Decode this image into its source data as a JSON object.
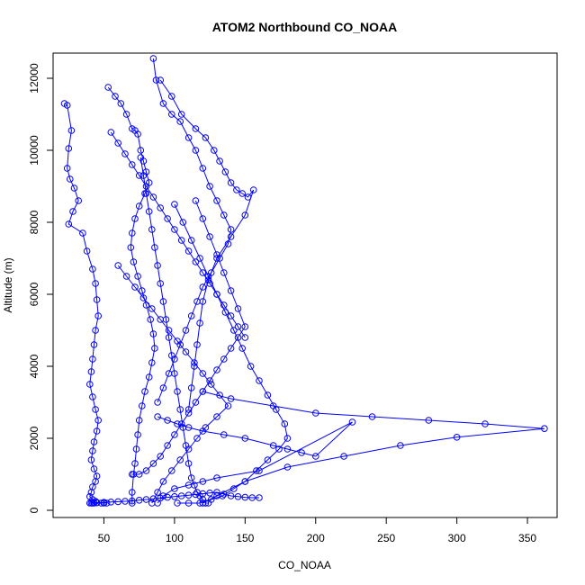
{
  "chart_data": {
    "type": "line",
    "title": "ATOM2 Northbound CO_NOAA",
    "xlabel": "CO_NOAA",
    "ylabel": "Altitude (m)",
    "xlim": [
      14,
      371
    ],
    "ylim": [
      -200,
      12700
    ],
    "x_ticks": [
      50,
      100,
      150,
      200,
      250,
      300,
      350
    ],
    "y_ticks": [
      0,
      2000,
      4000,
      6000,
      8000,
      10000,
      12000
    ],
    "colors": {
      "series": "#0000ff",
      "axis": "#000000",
      "background": "#ffffff"
    },
    "markers": "open-circle",
    "grid": false,
    "series": [
      {
        "x": [
          22,
          24,
          27,
          25,
          24,
          26,
          29,
          32,
          28,
          25,
          35,
          38,
          42,
          44,
          45,
          46,
          44,
          43,
          42,
          41,
          40,
          42,
          44,
          46,
          45,
          43,
          42,
          41,
          43,
          45,
          44,
          42,
          41,
          40,
          42,
          44,
          43,
          42,
          41,
          43,
          45,
          48,
          50,
          52
        ],
        "y": [
          11300,
          11250,
          10550,
          10050,
          9500,
          9200,
          8950,
          8600,
          8300,
          7950,
          7700,
          7200,
          6700,
          6300,
          5850,
          5400,
          5000,
          4600,
          4200,
          3850,
          3500,
          3150,
          2800,
          2500,
          2200,
          1900,
          1650,
          1400,
          1150,
          950,
          800,
          650,
          500,
          380,
          300,
          250,
          210,
          200,
          200,
          200,
          210,
          200,
          200,
          200
        ]
      },
      {
        "x": [
          53,
          58,
          62,
          66,
          70,
          72,
          74,
          76,
          78,
          80,
          82,
          79,
          75,
          72,
          70,
          69,
          71,
          74,
          77,
          80,
          83,
          85,
          86,
          84,
          82,
          79,
          77,
          75,
          74,
          73,
          72,
          71,
          70,
          70
        ],
        "y": [
          11750,
          11500,
          11300,
          11000,
          10600,
          10550,
          10450,
          10000,
          9700,
          9400,
          9100,
          8800,
          8450,
          8100,
          7700,
          7300,
          6900,
          6500,
          6100,
          5700,
          5300,
          4900,
          4500,
          4100,
          3700,
          3300,
          2900,
          2500,
          2100,
          1700,
          1300,
          1000,
          500,
          200
        ]
      },
      {
        "x": [
          85,
          87,
          92,
          98,
          104,
          110,
          115,
          120,
          125,
          130,
          135,
          140,
          138,
          132,
          126,
          120,
          116,
          112,
          108,
          104,
          100,
          96,
          92,
          88
        ],
        "y": [
          12550,
          11950,
          11300,
          11000,
          10800,
          10350,
          10000,
          9500,
          9000,
          8600,
          8200,
          7800,
          7400,
          7000,
          6600,
          6200,
          5800,
          5400,
          5000,
          4600,
          4200,
          3800,
          3400,
          3000
        ]
      },
      {
        "x": [
          88,
          95,
          102,
          110,
          120,
          135,
          150,
          170,
          180,
          190,
          200,
          226,
          160,
          130,
          120,
          110,
          100,
          92,
          88
        ],
        "y": [
          2600,
          2500,
          2400,
          2300,
          2200,
          2100,
          2000,
          1800,
          1700,
          1600,
          1500,
          2450,
          1100,
          900,
          800,
          700,
          600,
          400,
          200
        ]
      },
      {
        "x": [
          120,
          140,
          170,
          200,
          240,
          280,
          320,
          362,
          300,
          260,
          220,
          180,
          150,
          130,
          120
        ],
        "y": [
          3300,
          3100,
          2900,
          2700,
          2600,
          2500,
          2400,
          2270,
          2030,
          1800,
          1500,
          1200,
          800,
          400,
          200
        ]
      },
      {
        "x": [
          90,
          98,
          105,
          115,
          122,
          128,
          132,
          136,
          140,
          144,
          148,
          152,
          156,
          150,
          140,
          130,
          124,
          120,
          118,
          116,
          114,
          112,
          110
        ],
        "y": [
          11950,
          11500,
          11000,
          10600,
          10350,
          10000,
          9700,
          9400,
          9100,
          8900,
          8800,
          8700,
          8900,
          8200,
          7600,
          7000,
          6400,
          5800,
          5200,
          4600,
          4000,
          3400,
          2800
        ]
      },
      {
        "x": [
          60,
          66,
          72,
          78,
          84,
          90,
          96,
          102,
          108,
          114,
          120,
          126,
          132,
          138,
          130,
          122,
          116,
          110,
          104,
          98,
          92,
          88,
          84
        ],
        "y": [
          6800,
          6500,
          6200,
          5900,
          5600,
          5300,
          5000,
          4700,
          4400,
          4100,
          3800,
          3500,
          3200,
          2900,
          2600,
          2300,
          2000,
          1700,
          1400,
          1100,
          800,
          500,
          200
        ]
      },
      {
        "x": [
          100,
          106,
          112,
          118,
          124,
          130,
          136,
          142,
          148,
          154,
          160,
          166,
          172,
          178,
          180,
          174,
          166,
          158,
          150,
          142,
          134,
          126,
          118,
          110,
          102
        ],
        "y": [
          8500,
          8000,
          7500,
          7000,
          6500,
          6000,
          5500,
          5000,
          4500,
          4000,
          3600,
          3200,
          2800,
          2400,
          2000,
          1700,
          1400,
          1100,
          800,
          600,
          400,
          300,
          200,
          200,
          200
        ]
      },
      {
        "x": [
          76,
          78,
          80,
          82,
          84,
          86,
          88,
          90,
          92,
          94,
          96,
          98,
          100,
          102,
          104,
          106,
          108,
          110,
          112,
          114,
          116,
          118,
          120,
          122,
          124
        ],
        "y": [
          9800,
          9300,
          8800,
          8300,
          7800,
          7300,
          6800,
          6300,
          5800,
          5300,
          4800,
          4300,
          3800,
          3300,
          2800,
          2300,
          1800,
          1300,
          900,
          700,
          500,
          400,
          300,
          200,
          200
        ]
      },
      {
        "x": [
          70,
          75,
          80,
          85,
          90,
          95,
          100,
          105,
          110,
          115,
          120,
          125,
          130,
          135,
          140,
          145,
          150,
          145,
          140,
          135,
          130,
          125,
          120,
          115
        ],
        "y": [
          1000,
          1000,
          1100,
          1300,
          1500,
          1800,
          2100,
          2400,
          2700,
          3000,
          3300,
          3600,
          3900,
          4200,
          4500,
          4800,
          5100,
          5600,
          6100,
          6600,
          7100,
          7600,
          8100,
          8600
        ]
      },
      {
        "x": [
          55,
          60,
          65,
          70,
          75,
          80,
          85,
          90,
          95,
          100,
          105,
          110,
          115,
          120,
          125,
          130,
          135,
          140,
          145,
          150
        ],
        "y": [
          10500,
          10200,
          9900,
          9600,
          9300,
          9000,
          8700,
          8400,
          8100,
          7800,
          7500,
          7200,
          6900,
          6600,
          6300,
          6000,
          5700,
          5400,
          5100,
          4800
        ]
      },
      {
        "x": [
          40,
          45,
          50,
          55,
          60,
          65,
          70,
          75,
          80,
          85,
          90,
          95,
          100,
          105,
          110,
          115,
          120,
          125,
          130,
          135,
          140,
          145,
          150,
          155,
          160
        ],
        "y": [
          200,
          210,
          220,
          230,
          240,
          250,
          260,
          280,
          300,
          320,
          340,
          360,
          380,
          400,
          420,
          440,
          460,
          480,
          500,
          450,
          400,
          380,
          360,
          350,
          350
        ]
      }
    ]
  }
}
